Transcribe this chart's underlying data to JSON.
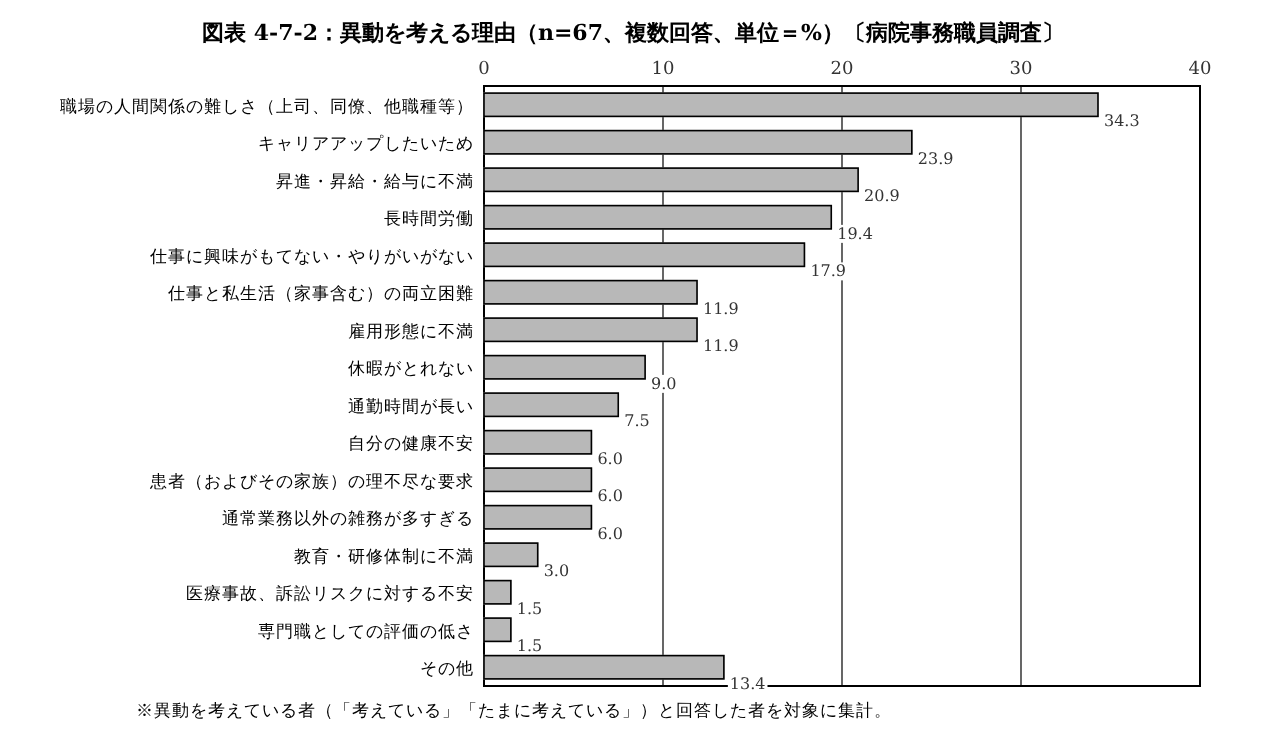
{
  "chart_data": {
    "type": "bar",
    "orientation": "horizontal",
    "title": "図表 4-7-2：異動を考える理由（n=67、複数回答、単位＝%）〔病院事務職員調査〕",
    "categories": [
      "職場の人間関係の難しさ（上司、同僚、他職種等）",
      "キャリアアップしたいため",
      "昇進・昇給・給与に不満",
      "長時間労働",
      "仕事に興味がもてない・やりがいがない",
      "仕事と私生活（家事含む）の両立困難",
      "雇用形態に不満",
      "休暇がとれない",
      "通勤時間が長い",
      "自分の健康不安",
      "患者（およびその家族）の理不尽な要求",
      "通常業務以外の雑務が多すぎる",
      "教育・研修体制に不満",
      "医療事故、訴訟リスクに対する不安",
      "専門職としての評価の低さ",
      "その他"
    ],
    "values": [
      34.3,
      23.9,
      20.9,
      19.4,
      17.9,
      11.9,
      11.9,
      9.0,
      7.5,
      6.0,
      6.0,
      6.0,
      3.0,
      1.5,
      1.5,
      13.4
    ],
    "value_labels": [
      "34.3",
      "23.9",
      "20.9",
      "19.4",
      "17.9",
      "11.9",
      "11.9",
      "9.0",
      "7.5",
      "6.0",
      "6.0",
      "6.0",
      "3.0",
      "1.5",
      "1.5",
      "13.4"
    ],
    "color": "#b8b8b8",
    "xlim": [
      0,
      40
    ],
    "xticks": [
      0,
      10,
      20,
      30,
      40
    ],
    "grid": "x",
    "annotations": [
      "※異動を考えている者（「考えている」「たまに考えている」）と回答した者を対象に集計。"
    ]
  }
}
